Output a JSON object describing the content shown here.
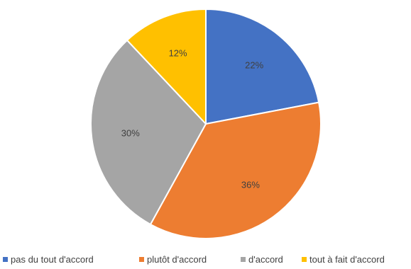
{
  "chart_data": {
    "type": "pie",
    "title": "",
    "categories": [
      "pas du tout d'accord",
      "plutôt d'accord",
      "d'accord",
      "tout à fait d'accord"
    ],
    "values": [
      22,
      36,
      30,
      12
    ],
    "labels": [
      "22%",
      "36%",
      "30%",
      "12%"
    ],
    "colors": [
      "#4472C4",
      "#ED7D31",
      "#A5A5A5",
      "#FFC000"
    ],
    "start_angle_deg": 0,
    "direction": "clockwise",
    "legend": {
      "position": "bottom",
      "entries": [
        "pas du tout d'accord",
        "plutôt d'accord",
        "d'accord",
        "tout à fait d'accord"
      ]
    }
  }
}
